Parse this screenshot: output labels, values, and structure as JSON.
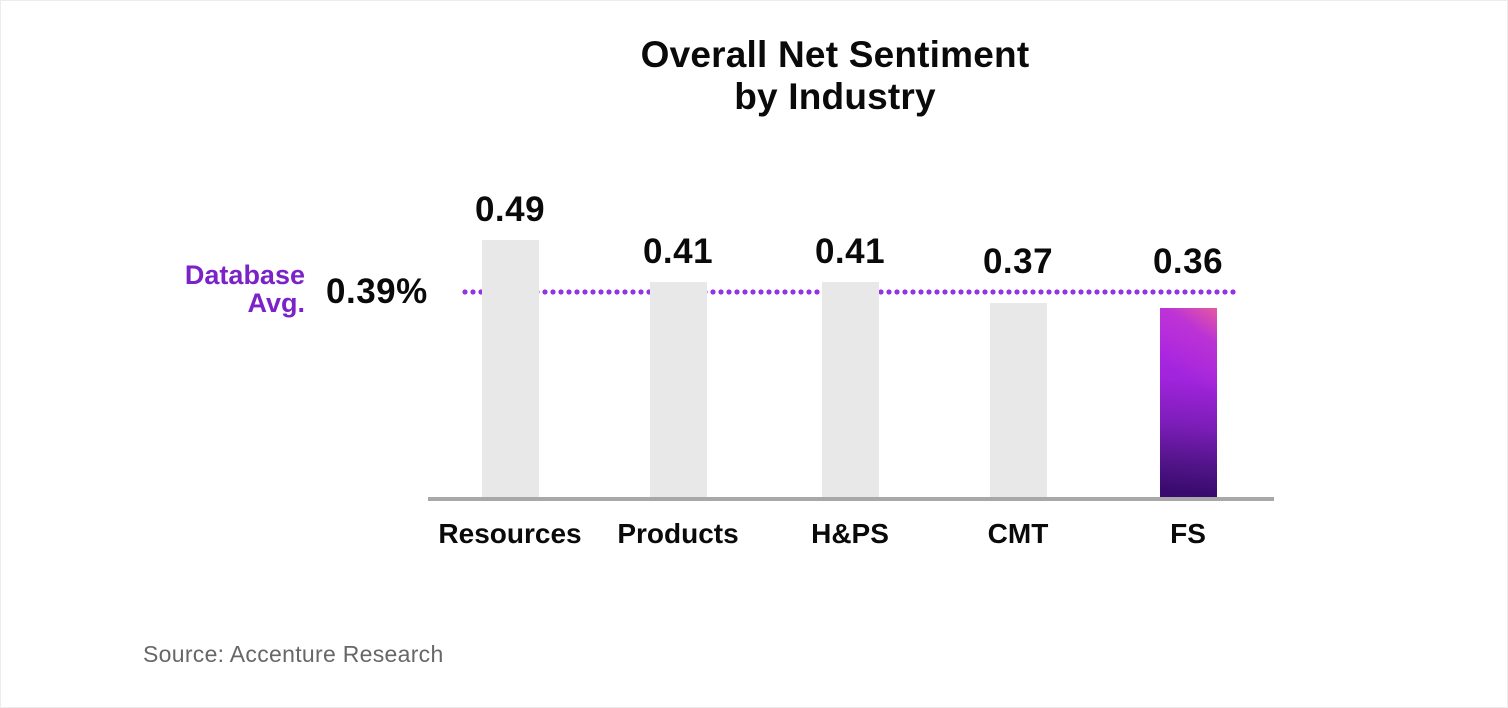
{
  "title": {
    "line1": "Overall Net Sentiment",
    "line2": "by Industry"
  },
  "reference_line": {
    "label_line1": "Database",
    "label_line2": "Avg.",
    "value_label": "0.39%",
    "value": 0.39
  },
  "source": "Source: Accenture Research",
  "colors": {
    "ref_text": "#7b22c9",
    "ref_dots": "#9333e6",
    "bar_default": "#e8e8e8",
    "axis": "#a8a8a8",
    "highlight_pink": "#e45aa0",
    "highlight_top": "#b428e6",
    "highlight_mid1": "#a124dd",
    "highlight_mid2": "#7c1db8",
    "highlight_deep": "#511488",
    "highlight_dark": "#3a0b6f"
  },
  "chart_data": {
    "type": "bar",
    "title": "Overall Net Sentiment by Industry",
    "categories": [
      "Resources",
      "Products",
      "H&PS",
      "CMT",
      "FS"
    ],
    "values": [
      0.49,
      0.41,
      0.41,
      0.37,
      0.36
    ],
    "value_labels": [
      "0.49",
      "0.41",
      "0.41",
      "0.37",
      "0.36"
    ],
    "reference_line": {
      "label": "Database Avg.",
      "value": 0.39,
      "value_label": "0.39%"
    },
    "xlabel": "",
    "ylabel": "",
    "ylim": [
      0,
      0.55
    ],
    "grid": false,
    "legend": false,
    "highlight_category": "FS",
    "source": "Accenture Research"
  }
}
